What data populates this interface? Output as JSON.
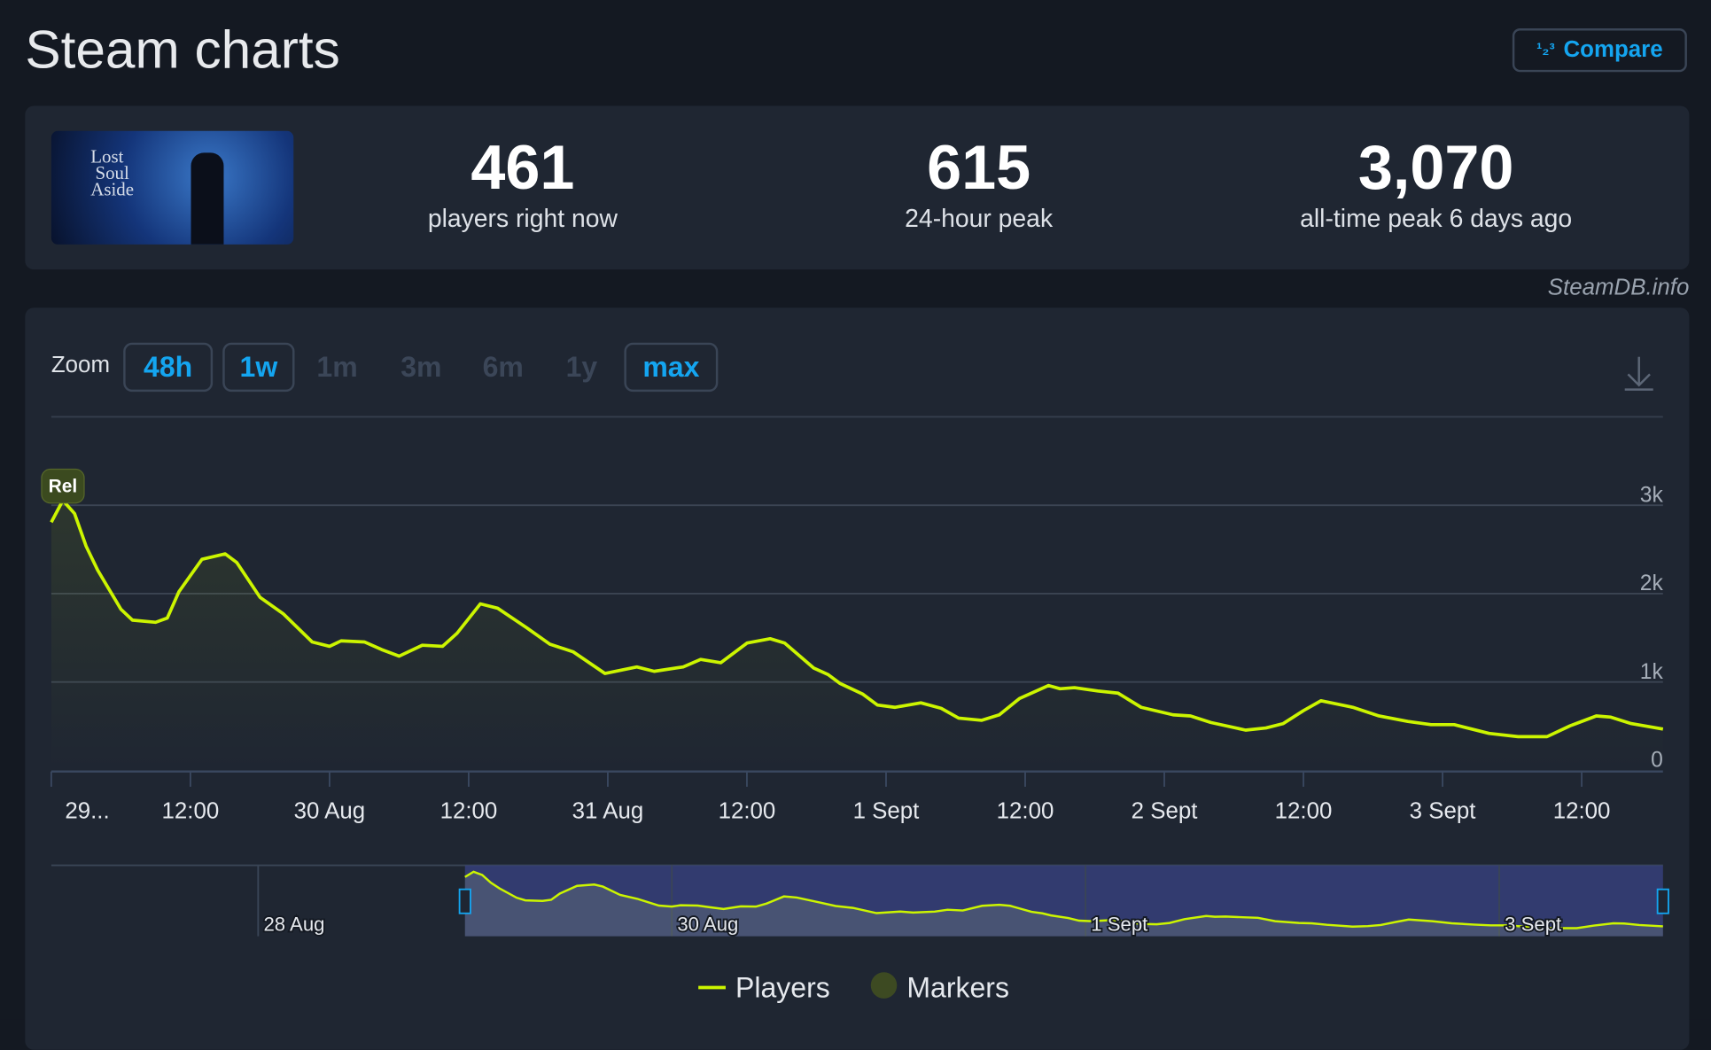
{
  "header": {
    "title": "Steam charts",
    "compare_label": "Compare",
    "compare_icon": "sort-numeric-icon"
  },
  "game": {
    "cover_text": "Lost Soul Aside"
  },
  "stats": [
    {
      "value": "461",
      "label": "players right now"
    },
    {
      "value": "615",
      "label": "24-hour peak"
    },
    {
      "value": "3,070",
      "label": "all-time peak 6 days ago"
    }
  ],
  "credit": "SteamDB.info",
  "zoom": {
    "label": "Zoom",
    "options": [
      {
        "label": "48h",
        "enabled": true
      },
      {
        "label": "1w",
        "enabled": true
      },
      {
        "label": "1m",
        "enabled": false
      },
      {
        "label": "3m",
        "enabled": false
      },
      {
        "label": "6m",
        "enabled": false
      },
      {
        "label": "1y",
        "enabled": false
      },
      {
        "label": "max",
        "enabled": true
      }
    ],
    "download_icon": "download-icon"
  },
  "colors": {
    "line": "#ccf500",
    "accent": "#14a5f0",
    "marker": "#3d4a22",
    "navigator_selection": "#36407a"
  },
  "chart_data": {
    "type": "area",
    "y_ticks": [
      "0",
      "1k",
      "2k",
      "3k"
    ],
    "ylim": [
      0,
      3000
    ],
    "x_ticks": [
      "29...",
      "12:00",
      "30 Aug",
      "12:00",
      "31 Aug",
      "12:00",
      "1 Sept",
      "12:00",
      "2 Sept",
      "12:00",
      "3 Sept",
      "12:00"
    ],
    "xlim": [
      "29 Aug 00:00",
      "3 Sept 19:00"
    ],
    "grid": true,
    "marker": {
      "label": "Rel",
      "x": "29 Aug 01:00"
    },
    "series": [
      {
        "name": "Players",
        "points": [
          [
            "29 Aug 00:00",
            2808
          ],
          [
            "29 Aug 01:00",
            3054
          ],
          [
            "29 Aug 02:00",
            2906
          ],
          [
            "29 Aug 03:00",
            2537
          ],
          [
            "29 Aug 04:00",
            2266
          ],
          [
            "29 Aug 06:00",
            1823
          ],
          [
            "29 Aug 07:00",
            1700
          ],
          [
            "29 Aug 09:00",
            1675
          ],
          [
            "29 Aug 10:00",
            1724
          ],
          [
            "29 Aug 11:00",
            2020
          ],
          [
            "29 Aug 13:00",
            2389
          ],
          [
            "29 Aug 15:00",
            2450
          ],
          [
            "29 Aug 16:00",
            2352
          ],
          [
            "29 Aug 18:00",
            1958
          ],
          [
            "29 Aug 20:00",
            1773
          ],
          [
            "29 Aug 22:30",
            1453
          ],
          [
            "30 Aug 00:00",
            1404
          ],
          [
            "30 Aug 01:00",
            1466
          ],
          [
            "30 Aug 03:00",
            1453
          ],
          [
            "30 Aug 04:30",
            1367
          ],
          [
            "30 Aug 06:00",
            1293
          ],
          [
            "30 Aug 08:00",
            1416
          ],
          [
            "30 Aug 09:45",
            1404
          ],
          [
            "30 Aug 11:00",
            1552
          ],
          [
            "30 Aug 13:00",
            1884
          ],
          [
            "30 Aug 14:30",
            1835
          ],
          [
            "30 Aug 17:00",
            1613
          ],
          [
            "30 Aug 19:00",
            1429
          ],
          [
            "30 Aug 21:00",
            1342
          ],
          [
            "30 Aug 23:45",
            1096
          ],
          [
            "31 Aug 02:30",
            1170
          ],
          [
            "31 Aug 04:00",
            1121
          ],
          [
            "31 Aug 06:30",
            1170
          ],
          [
            "31 Aug 08:00",
            1256
          ],
          [
            "31 Aug 09:45",
            1219
          ],
          [
            "31 Aug 12:00",
            1441
          ],
          [
            "31 Aug 14:00",
            1490
          ],
          [
            "31 Aug 15:15",
            1441
          ],
          [
            "31 Aug 17:45",
            1158
          ],
          [
            "31 Aug 19:00",
            1084
          ],
          [
            "31 Aug 20:00",
            985
          ],
          [
            "31 Aug 22:00",
            862
          ],
          [
            "31 Aug 23:15",
            739
          ],
          [
            "1 Sept 00:45",
            714
          ],
          [
            "1 Sept 03:00",
            764
          ],
          [
            "1 Sept 04:45",
            702
          ],
          [
            "1 Sept 06:15",
            591
          ],
          [
            "1 Sept 08:15",
            567
          ],
          [
            "1 Sept 09:45",
            628
          ],
          [
            "1 Sept 11:30",
            813
          ],
          [
            "1 Sept 14:00",
            961
          ],
          [
            "1 Sept 15:00",
            924
          ],
          [
            "1 Sept 16:15",
            936
          ],
          [
            "1 Sept 18:15",
            899
          ],
          [
            "1 Sept 20:00",
            874
          ],
          [
            "1 Sept 22:00",
            714
          ],
          [
            "2 Sept 00:45",
            628
          ],
          [
            "2 Sept 02:15",
            616
          ],
          [
            "2 Sept 04:00",
            542
          ],
          [
            "2 Sept 07:00",
            456
          ],
          [
            "2 Sept 08:45",
            480
          ],
          [
            "2 Sept 10:15",
            530
          ],
          [
            "2 Sept 12:00",
            677
          ],
          [
            "2 Sept 13:30",
            788
          ],
          [
            "2 Sept 16:15",
            714
          ],
          [
            "2 Sept 18:30",
            616
          ],
          [
            "2 Sept 21:00",
            554
          ],
          [
            "2 Sept 23:00",
            517
          ],
          [
            "3 Sept 01:00",
            517
          ],
          [
            "3 Sept 04:00",
            419
          ],
          [
            "3 Sept 06:30",
            382
          ],
          [
            "3 Sept 09:00",
            382
          ],
          [
            "3 Sept 11:00",
            505
          ],
          [
            "3 Sept 13:15",
            616
          ],
          [
            "3 Sept 14:30",
            603
          ],
          [
            "3 Sept 16:15",
            530
          ],
          [
            "3 Sept 19:00",
            468
          ]
        ]
      }
    ],
    "navigator": {
      "x_ticks": [
        "28 Aug",
        "30 Aug",
        "1 Sept",
        "3 Sept"
      ],
      "range": [
        "27 Aug 00:00",
        "3 Sept 19:00"
      ],
      "selection": [
        "29 Aug 00:00",
        "3 Sept 19:00"
      ]
    },
    "legend": [
      {
        "name": "Players",
        "symbol": "line"
      },
      {
        "name": "Markers",
        "symbol": "circle"
      }
    ],
    "legend_position": "bottom"
  }
}
